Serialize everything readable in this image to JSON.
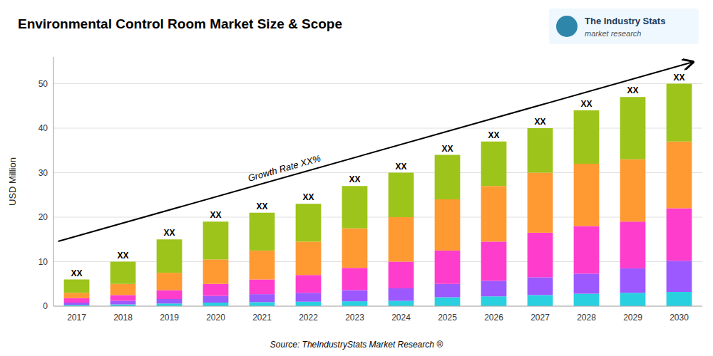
{
  "chart_data": {
    "type": "bar",
    "stacked": true,
    "grid": true,
    "title": "Environmental Control Room Market Size & Scope",
    "ylabel": "USD Million",
    "source": "Source: TheIndustryStats Market Research ®",
    "logo_title": "The Industry Stats",
    "logo_subtitle": "market research",
    "annotations": [
      "Growth Rate XX%"
    ],
    "total_labels": [
      "XX",
      "XX",
      "XX",
      "XX",
      "XX",
      "XX",
      "XX",
      "XX",
      "XX",
      "XX",
      "XX",
      "XX",
      "XX",
      "XX"
    ],
    "categories": [
      "2017",
      "2018",
      "2019",
      "2020",
      "2021",
      "2022",
      "2023",
      "2024",
      "2025",
      "2026",
      "2027",
      "2028",
      "2029",
      "2030"
    ],
    "series": [
      {
        "color": "#29D0E0",
        "values": [
          0.3,
          0.4,
          0.6,
          0.8,
          0.9,
          1.0,
          1.1,
          1.2,
          2.0,
          2.2,
          2.5,
          2.8,
          3.0,
          3.2
        ]
      },
      {
        "color": "#9B59FF",
        "values": [
          0.5,
          0.8,
          1.0,
          1.5,
          1.8,
          2.0,
          2.5,
          2.8,
          3.0,
          3.5,
          4.0,
          4.5,
          5.5,
          7.0
        ]
      },
      {
        "color": "#FF3DCC",
        "values": [
          1.0,
          1.3,
          2.0,
          2.7,
          3.3,
          4.0,
          5.0,
          6.0,
          7.5,
          8.8,
          10.0,
          10.7,
          10.5,
          11.8
        ]
      },
      {
        "color": "#FF9A33",
        "values": [
          1.2,
          2.5,
          3.9,
          5.5,
          6.5,
          7.5,
          8.9,
          10.0,
          11.5,
          12.5,
          13.5,
          14.0,
          14.0,
          15.0
        ]
      },
      {
        "color": "#9DC41A",
        "values": [
          3.0,
          5.0,
          7.5,
          8.5,
          8.5,
          8.5,
          9.5,
          10.0,
          10.0,
          10.0,
          10.0,
          12.0,
          14.0,
          13.0
        ]
      }
    ],
    "ylim": [
      0,
      56
    ],
    "yticks": [
      0,
      10,
      20,
      30,
      40,
      50
    ]
  }
}
